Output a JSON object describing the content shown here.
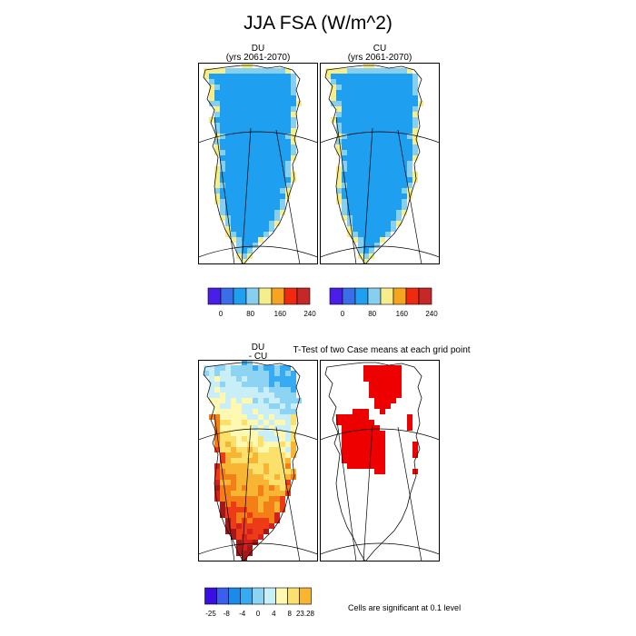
{
  "title": "JJA FSA (W/m^2)",
  "panels": {
    "du": {
      "line1": "DU",
      "line2": "(yrs 2061-2070)"
    },
    "cu": {
      "line1": "CU",
      "line2": "(yrs 2061-2070)"
    },
    "diff": {
      "line1": "DU",
      "line2": "- CU"
    },
    "ttest": {
      "title": "T-Test of two Case means at each grid point"
    }
  },
  "significance_note": "Cells are significant at 0.1 level",
  "chart_data": [
    {
      "type": "heatmap",
      "title": "DU (yrs 2061-2070)",
      "colorbar": {
        "colors": [
          "#4a1ee8",
          "#3a6ee8",
          "#1f9fef",
          "#86cfee",
          "#f6ee8c",
          "#f7a521",
          "#ef2a10",
          "#c62828"
        ],
        "tick_labels": [
          "0",
          "80",
          "160",
          "240"
        ]
      }
    },
    {
      "type": "heatmap",
      "title": "CU (yrs 2061-2070)",
      "colorbar": {
        "colors": [
          "#4a1ee8",
          "#3a6ee8",
          "#1f9fef",
          "#86cfee",
          "#f6ee8c",
          "#f7a521",
          "#ef2a10",
          "#c62828"
        ],
        "tick_labels": [
          "0",
          "80",
          "160",
          "240"
        ]
      }
    },
    {
      "type": "heatmap",
      "title": "DU - CU",
      "colorbar": {
        "colors": [
          "#3a0ee0",
          "#3b5df0",
          "#1b8be8",
          "#36aaf2",
          "#8cd3f4",
          "#c8eef8",
          "#fff8b0",
          "#fbe16c",
          "#f8b534",
          "#f57f17",
          "#ec3b16",
          "#d41f1f",
          "#a11818"
        ],
        "tick_labels": [
          "-25",
          "-8",
          "-4",
          "0",
          "4",
          "8",
          "23.28"
        ]
      }
    },
    {
      "type": "heatmap",
      "title": "T-Test of two Case means at each grid point",
      "significant_color": "#ee0000"
    }
  ]
}
